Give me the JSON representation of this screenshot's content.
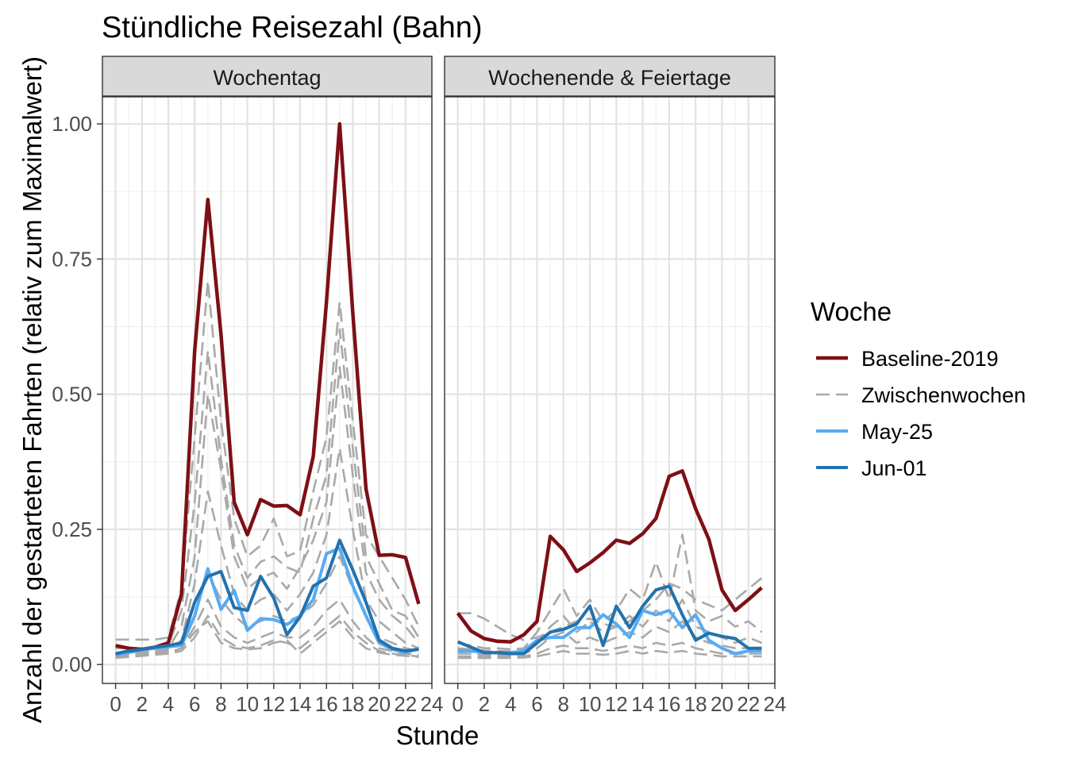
{
  "chart_data": {
    "type": "line",
    "title": "Stündliche Reisezahl (Bahn)",
    "xlabel": "Stunde",
    "ylabel": "Anzahl der gestarteten Fahrten (relativ zum Maximalwert)",
    "xlim": [
      -1,
      24
    ],
    "ylim": [
      -0.035,
      1.05
    ],
    "x_ticks": [
      0,
      2,
      4,
      6,
      8,
      10,
      12,
      14,
      16,
      18,
      20,
      22,
      24
    ],
    "x_tick_labels": [
      "0",
      "2",
      "4",
      "6",
      "8",
      "10",
      "12",
      "14",
      "16",
      "18",
      "20",
      "22",
      "24"
    ],
    "y_ticks": [
      0,
      0.25,
      0.5,
      0.75,
      1.0
    ],
    "y_tick_labels": [
      "0.00",
      "0.25",
      "0.50",
      "0.75",
      "1.00"
    ],
    "grid": true,
    "legend": {
      "title": "Woche",
      "position": "right",
      "entries": [
        {
          "label": "Baseline-2019",
          "color": "#7f0f17",
          "dash": "solid"
        },
        {
          "label": "Zwischenwochen",
          "color": "#a9a9a9",
          "dash": "dashed"
        },
        {
          "label": "May-25",
          "color": "#56abf2",
          "dash": "solid"
        },
        {
          "label": "Jun-01",
          "color": "#2371ad",
          "dash": "solid"
        }
      ]
    },
    "x": [
      0,
      1,
      2,
      3,
      4,
      5,
      6,
      7,
      8,
      9,
      10,
      11,
      12,
      13,
      14,
      15,
      16,
      17,
      18,
      19,
      20,
      21,
      22,
      23
    ],
    "panels": [
      {
        "name": "Wochentag",
        "series": [
          {
            "name": "Baseline-2019",
            "values": [
              0.035,
              0.03,
              0.028,
              0.032,
              0.04,
              0.13,
              0.58,
              0.86,
              0.61,
              0.3,
              0.24,
              0.305,
              0.293,
              0.294,
              0.277,
              0.385,
              0.67,
              1.0,
              0.65,
              0.325,
              0.202,
              0.203,
              0.198,
              0.112
            ]
          },
          {
            "name": "May-25",
            "values": [
              0.018,
              0.022,
              0.027,
              0.03,
              0.033,
              0.035,
              0.09,
              0.177,
              0.102,
              0.137,
              0.063,
              0.085,
              0.083,
              0.074,
              0.09,
              0.12,
              0.205,
              0.215,
              0.145,
              0.09,
              0.04,
              0.028,
              0.022,
              0.03
            ]
          },
          {
            "name": "Jun-01",
            "values": [
              0.02,
              0.025,
              0.028,
              0.032,
              0.035,
              0.04,
              0.115,
              0.163,
              0.172,
              0.105,
              0.1,
              0.163,
              0.123,
              0.055,
              0.088,
              0.145,
              0.16,
              0.23,
              0.175,
              0.115,
              0.045,
              0.03,
              0.025,
              0.028
            ]
          },
          {
            "name": "Zwischenwochen",
            "values": [
              0.046,
              0.046,
              0.046,
              0.046,
              0.05,
              0.14,
              0.42,
              0.71,
              0.45,
              0.27,
              0.2,
              0.22,
              0.27,
              0.2,
              0.21,
              0.32,
              0.42,
              0.67,
              0.45,
              0.24,
              0.2,
              0.16,
              0.12,
              0.07
            ]
          },
          {
            "name": "Zwischenwochen",
            "values": [
              0.03,
              0.03,
              0.03,
              0.03,
              0.035,
              0.1,
              0.3,
              0.58,
              0.38,
              0.22,
              0.16,
              0.19,
              0.2,
              0.18,
              0.17,
              0.27,
              0.35,
              0.62,
              0.4,
              0.2,
              0.15,
              0.1,
              0.09,
              0.05
            ]
          },
          {
            "name": "Zwischenwochen",
            "values": [
              0.02,
              0.02,
              0.022,
              0.025,
              0.03,
              0.07,
              0.2,
              0.5,
              0.36,
              0.2,
              0.14,
              0.16,
              0.17,
              0.14,
              0.18,
              0.23,
              0.3,
              0.55,
              0.35,
              0.17,
              0.12,
              0.09,
              0.07,
              0.04
            ]
          },
          {
            "name": "Zwischenwochen",
            "values": [
              0.015,
              0.018,
              0.02,
              0.022,
              0.025,
              0.045,
              0.15,
              0.32,
              0.22,
              0.13,
              0.1,
              0.12,
              0.13,
              0.1,
              0.13,
              0.17,
              0.24,
              0.4,
              0.25,
              0.12,
              0.08,
              0.06,
              0.04,
              0.03
            ]
          },
          {
            "name": "Zwischenwochen",
            "values": [
              0.018,
              0.02,
              0.022,
              0.024,
              0.028,
              0.04,
              0.09,
              0.17,
              0.12,
              0.09,
              0.07,
              0.08,
              0.09,
              0.08,
              0.09,
              0.11,
              0.15,
              0.2,
              0.14,
              0.09,
              0.05,
              0.04,
              0.03,
              0.025
            ]
          },
          {
            "name": "Zwischenwochen",
            "values": [
              0.015,
              0.017,
              0.018,
              0.02,
              0.022,
              0.03,
              0.07,
              0.12,
              0.07,
              0.05,
              0.04,
              0.05,
              0.06,
              0.05,
              0.05,
              0.07,
              0.1,
              0.12,
              0.08,
              0.05,
              0.03,
              0.025,
              0.02,
              0.018
            ]
          },
          {
            "name": "Zwischenwochen",
            "values": [
              0.012,
              0.014,
              0.016,
              0.018,
              0.02,
              0.025,
              0.05,
              0.09,
              0.05,
              0.035,
              0.03,
              0.035,
              0.045,
              0.04,
              0.03,
              0.05,
              0.07,
              0.09,
              0.06,
              0.04,
              0.025,
              0.02,
              0.017,
              0.015
            ]
          },
          {
            "name": "Zwischenwochen",
            "values": [
              0.014,
              0.016,
              0.017,
              0.019,
              0.021,
              0.03,
              0.06,
              0.08,
              0.04,
              0.03,
              0.028,
              0.03,
              0.04,
              0.045,
              0.02,
              0.04,
              0.06,
              0.08,
              0.05,
              0.03,
              0.022,
              0.018,
              0.016,
              0.014
            ]
          }
        ]
      },
      {
        "name": "Wochenende & Feiertage",
        "series": [
          {
            "name": "Baseline-2019",
            "values": [
              0.095,
              0.062,
              0.048,
              0.043,
              0.042,
              0.055,
              0.08,
              0.237,
              0.212,
              0.172,
              0.188,
              0.207,
              0.23,
              0.224,
              0.242,
              0.27,
              0.348,
              0.358,
              0.288,
              0.232,
              0.138,
              0.1,
              0.12,
              0.142
            ]
          },
          {
            "name": "May-25",
            "values": [
              0.025,
              0.025,
              0.022,
              0.022,
              0.022,
              0.025,
              0.045,
              0.05,
              0.05,
              0.068,
              0.068,
              0.092,
              0.075,
              0.05,
              0.1,
              0.092,
              0.1,
              0.068,
              0.092,
              0.045,
              0.03,
              0.02,
              0.025,
              0.025
            ]
          },
          {
            "name": "Jun-01",
            "values": [
              0.042,
              0.032,
              0.022,
              0.022,
              0.02,
              0.02,
              0.04,
              0.06,
              0.065,
              0.075,
              0.108,
              0.035,
              0.108,
              0.068,
              0.108,
              0.138,
              0.145,
              0.092,
              0.045,
              0.058,
              0.052,
              0.048,
              0.03,
              0.03
            ]
          },
          {
            "name": "Zwischenwochen",
            "values": [
              0.095,
              0.095,
              0.085,
              0.07,
              0.055,
              0.045,
              0.05,
              0.06,
              0.07,
              0.08,
              0.085,
              0.075,
              0.07,
              0.08,
              0.1,
              0.12,
              0.15,
              0.14,
              0.12,
              0.11,
              0.1,
              0.12,
              0.14,
              0.16
            ]
          },
          {
            "name": "Zwischenwochen",
            "values": [
              0.04,
              0.035,
              0.03,
              0.03,
              0.028,
              0.03,
              0.06,
              0.1,
              0.14,
              0.09,
              0.12,
              0.08,
              0.1,
              0.14,
              0.12,
              0.19,
              0.12,
              0.24,
              0.1,
              0.08,
              0.09,
              0.07,
              0.08,
              0.06
            ]
          },
          {
            "name": "Zwischenwochen",
            "values": [
              0.03,
              0.028,
              0.026,
              0.025,
              0.024,
              0.026,
              0.04,
              0.07,
              0.09,
              0.06,
              0.08,
              0.06,
              0.07,
              0.09,
              0.07,
              0.1,
              0.08,
              0.12,
              0.07,
              0.06,
              0.05,
              0.04,
              0.05,
              0.04
            ]
          },
          {
            "name": "Zwischenwochen",
            "values": [
              0.02,
              0.02,
              0.018,
              0.018,
              0.017,
              0.02,
              0.03,
              0.05,
              0.06,
              0.04,
              0.05,
              0.04,
              0.05,
              0.06,
              0.05,
              0.07,
              0.06,
              0.08,
              0.05,
              0.04,
              0.035,
              0.03,
              0.03,
              0.03
            ]
          },
          {
            "name": "Zwischenwochen",
            "values": [
              0.015,
              0.015,
              0.015,
              0.015,
              0.014,
              0.015,
              0.02,
              0.03,
              0.035,
              0.03,
              0.03,
              0.025,
              0.03,
              0.035,
              0.03,
              0.04,
              0.035,
              0.04,
              0.03,
              0.025,
              0.02,
              0.02,
              0.02,
              0.02
            ]
          },
          {
            "name": "Zwischenwochen",
            "values": [
              0.012,
              0.012,
              0.012,
              0.012,
              0.012,
              0.013,
              0.015,
              0.02,
              0.025,
              0.02,
              0.02,
              0.018,
              0.02,
              0.025,
              0.02,
              0.025,
              0.022,
              0.025,
              0.02,
              0.018,
              0.015,
              0.015,
              0.015,
              0.015
            ]
          }
        ]
      }
    ]
  }
}
